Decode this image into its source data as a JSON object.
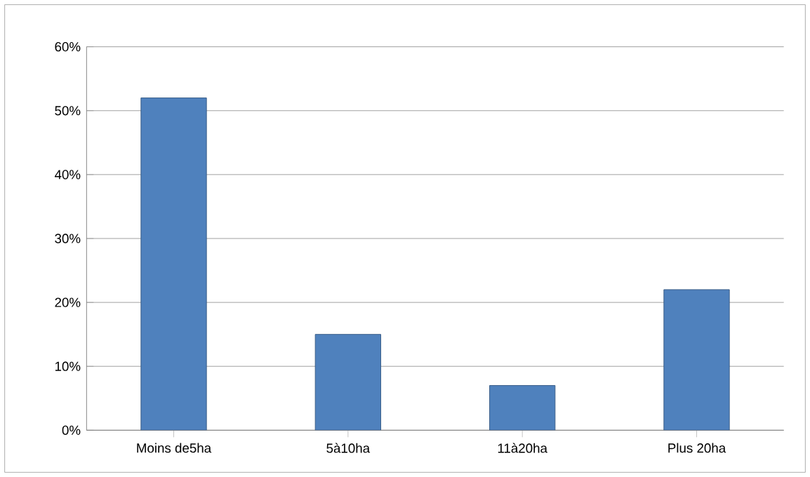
{
  "chart_data": {
    "type": "bar",
    "categories": [
      "Moins de5ha",
      "5à10ha",
      "11à20ha",
      "Plus 20ha"
    ],
    "values": [
      52,
      15,
      7,
      22
    ],
    "color": "#4f81bd",
    "ylim": [
      0,
      60
    ],
    "yticks": [
      {
        "value": 0,
        "label": "0%"
      },
      {
        "value": 10,
        "label": "10%"
      },
      {
        "value": 20,
        "label": "20%"
      },
      {
        "value": 30,
        "label": "30%"
      },
      {
        "value": 40,
        "label": "40%"
      },
      {
        "value": 50,
        "label": "50%"
      },
      {
        "value": 60,
        "label": "60%"
      }
    ],
    "grid": "y"
  }
}
